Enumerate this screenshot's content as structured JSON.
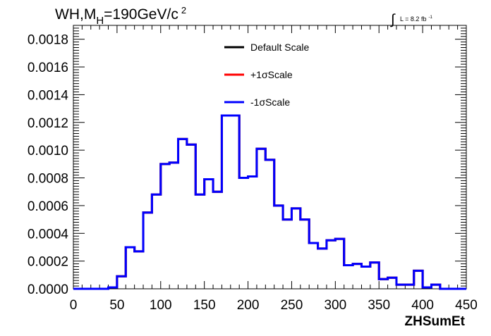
{
  "chart_data": {
    "type": "line",
    "title": {
      "main": "WH,M",
      "subscript": "H",
      "rest": "=190GeV/c",
      "superscript": "2"
    },
    "lumi": {
      "text": "L = 8.2 fb",
      "superscript": "-1"
    },
    "xlabel": "ZHSumEt",
    "ylabel": "",
    "xlim": [
      0,
      450
    ],
    "ylim": [
      0,
      0.0019
    ],
    "x_ticks": [
      "0",
      "50",
      "100",
      "150",
      "200",
      "250",
      "300",
      "350",
      "400",
      "450"
    ],
    "y_ticks": [
      "0.0000",
      "0.0002",
      "0.0004",
      "0.0006",
      "0.0008",
      "0.0010",
      "0.0012",
      "0.0014",
      "0.0016",
      "0.0018"
    ],
    "bin_edges": [
      0,
      10,
      20,
      30,
      40,
      50,
      60,
      70,
      80,
      90,
      100,
      110,
      120,
      130,
      140,
      150,
      160,
      170,
      180,
      190,
      200,
      210,
      220,
      230,
      240,
      250,
      260,
      270,
      280,
      290,
      300,
      310,
      320,
      330,
      340,
      350,
      360,
      370,
      380,
      390,
      400,
      410,
      420,
      430,
      440,
      450
    ],
    "grid": false,
    "legend_position": "top-center",
    "series": [
      {
        "name": "Default Scale",
        "color": "#000000",
        "values": [
          0,
          0,
          0,
          0,
          1e-05,
          9e-05,
          0.0003,
          0.00027,
          0.00055,
          0.00068,
          0.0009,
          0.00091,
          0.00108,
          0.00104,
          0.00068,
          0.00079,
          0.0007,
          0.00125,
          0.00125,
          0.0008,
          0.00081,
          0.00101,
          0.00093,
          0.0006,
          0.0005,
          0.00058,
          0.0005,
          0.00033,
          0.00029,
          0.00035,
          0.00036,
          0.00017,
          0.00018,
          0.00016,
          0.00019,
          7e-05,
          8e-05,
          3e-05,
          3e-05,
          0.00013,
          1e-05,
          3e-05,
          0,
          0,
          0
        ]
      },
      {
        "name": "+1σScale",
        "color": "#ff0000",
        "values": [
          0,
          0,
          0,
          0,
          1e-05,
          9e-05,
          0.0003,
          0.00027,
          0.00055,
          0.00068,
          0.0009,
          0.00091,
          0.00108,
          0.00104,
          0.00068,
          0.00079,
          0.0007,
          0.00125,
          0.00125,
          0.0008,
          0.00081,
          0.00101,
          0.00093,
          0.0006,
          0.0005,
          0.00058,
          0.0005,
          0.00033,
          0.00029,
          0.00035,
          0.00036,
          0.00017,
          0.00018,
          0.00016,
          0.00019,
          7e-05,
          8e-05,
          3e-05,
          3e-05,
          0.00013,
          1e-05,
          3e-05,
          0,
          0,
          0
        ]
      },
      {
        "name": "-1σScale",
        "color": "#0000ff",
        "values": [
          0,
          0,
          0,
          0,
          1e-05,
          9e-05,
          0.0003,
          0.00027,
          0.00055,
          0.00068,
          0.0009,
          0.00091,
          0.00108,
          0.00104,
          0.00068,
          0.00079,
          0.0007,
          0.00125,
          0.00125,
          0.0008,
          0.00081,
          0.00101,
          0.00093,
          0.0006,
          0.0005,
          0.00058,
          0.0005,
          0.00033,
          0.00029,
          0.00035,
          0.00036,
          0.00017,
          0.00018,
          0.00016,
          0.00019,
          7e-05,
          8e-05,
          3e-05,
          3e-05,
          0.00013,
          1e-05,
          3e-05,
          0,
          0,
          0
        ]
      }
    ]
  }
}
